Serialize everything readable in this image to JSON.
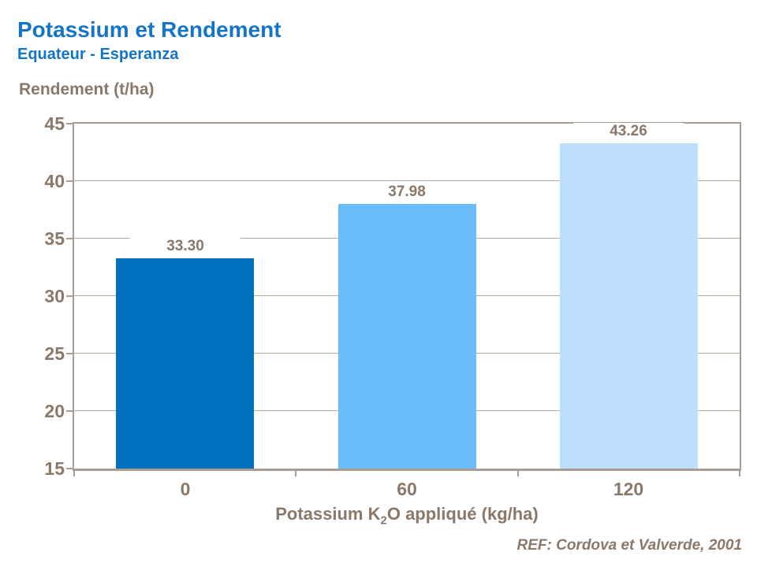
{
  "header": {
    "title": "Potassium et Rendement",
    "subtitle": "Equateur - Esperanza"
  },
  "chart_data": {
    "type": "bar",
    "title": "Potassium et Rendement",
    "subtitle": "Equateur - Esperanza",
    "categories": [
      "0",
      "60",
      "120"
    ],
    "values": [
      33.3,
      37.98,
      43.26
    ],
    "value_labels": [
      "33.30",
      "37.98",
      "43.26"
    ],
    "bar_colors": [
      "#0070C0",
      "#6ABCFA",
      "#BDDFFB"
    ],
    "ylabel": "Rendement (t/ha)",
    "xlabel_text": "Potassium K2O appliqué (kg/ha)",
    "xlabel": {
      "pre": "Potassium K",
      "sub": "2",
      "post": "O appliqué (kg/ha)"
    },
    "ylim": [
      15,
      45
    ],
    "yticks": [
      45,
      40,
      35,
      30,
      25,
      20,
      15
    ],
    "grid": true,
    "legend": "none"
  },
  "footer": {
    "reference": "REF: Cordova et Valverde, 2001"
  },
  "colors": {
    "title": "#1474C6",
    "axis_text": "#8A7868",
    "grid_line": "#B3AA9E",
    "plot_border": "#A79D91",
    "bar_dark_blue": "#0070C0",
    "bar_medium_blue": "#6ABCFA",
    "bar_light_blue": "#BDDFFB",
    "background": "#FFFFFF"
  }
}
